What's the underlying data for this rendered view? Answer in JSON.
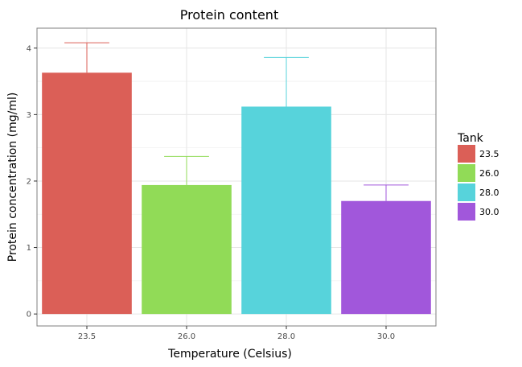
{
  "chart_data": {
    "type": "bar",
    "title": "Protein content",
    "xlabel": "Temperature (Celsius)",
    "ylabel": "Protein concentration (mg/ml)",
    "categories": [
      "23.5",
      "26.0",
      "28.0",
      "30.0"
    ],
    "values": [
      3.63,
      1.94,
      3.12,
      1.7
    ],
    "error_upper": [
      4.08,
      2.37,
      3.86,
      1.94
    ],
    "colors": [
      "#DB5F57",
      "#91DB57",
      "#57D3DB",
      "#A157DB"
    ],
    "ylim": [
      -0.18,
      4.3
    ],
    "yticks": [
      0,
      1,
      2,
      3,
      4
    ],
    "grid": true,
    "legend": {
      "title": "Tank",
      "position": "right",
      "entries": [
        "23.5",
        "26.0",
        "28.0",
        "30.0"
      ]
    }
  }
}
